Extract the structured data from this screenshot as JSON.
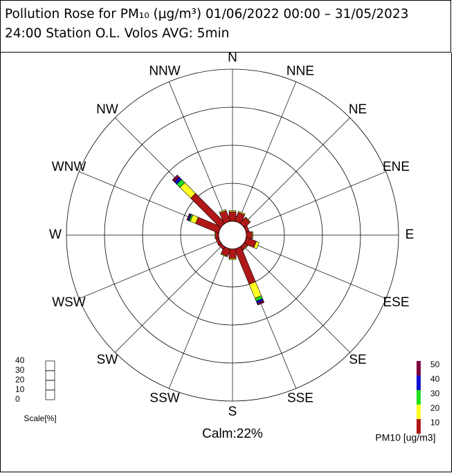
{
  "chart_data": {
    "type": "rose",
    "title": "Pollution Rose for PM₁₀  (μg/m³) 01/06/2022 00:00 – 31/05/2023 24:00 Station O.L. Volos AVG: 5min",
    "directions": [
      "N",
      "NNE",
      "NE",
      "ENE",
      "E",
      "ESE",
      "SE",
      "SSE",
      "S",
      "SSW",
      "SW",
      "WSW",
      "W",
      "WNW",
      "NW",
      "NNW"
    ],
    "series": [
      {
        "name": "10",
        "color": "#b01818",
        "values": [
          2.5,
          2.5,
          2,
          0.8,
          1.5,
          2.8,
          1,
          10,
          2.5,
          2,
          0.8,
          0.8,
          0.8,
          6.5,
          11,
          3
        ]
      },
      {
        "name": "20",
        "color": "#ffff20",
        "values": [
          0.3,
          0.3,
          0.2,
          0,
          0.2,
          0.8,
          0.2,
          4,
          0.3,
          0.2,
          0,
          0,
          0.2,
          1.5,
          4,
          0.3
        ]
      },
      {
        "name": "30",
        "color": "#20e020",
        "values": [
          0,
          0,
          0,
          0,
          0,
          0,
          0,
          0.8,
          0,
          0,
          0,
          0,
          0,
          0.4,
          1.2,
          0
        ]
      },
      {
        "name": "40",
        "color": "#1010d0",
        "values": [
          0,
          0,
          0,
          0,
          0,
          0,
          0,
          0.6,
          0,
          0,
          0,
          0,
          0,
          0.3,
          0.8,
          0
        ]
      },
      {
        "name": "50",
        "color": "#800040",
        "values": [
          0,
          0,
          0,
          0,
          0,
          0,
          0,
          0.5,
          0,
          0,
          0,
          0,
          0,
          0.3,
          0.8,
          0
        ]
      }
    ],
    "rlim": [
      0,
      40
    ],
    "rticks": [
      0,
      10,
      20,
      30,
      40
    ],
    "scale_label": "Scale[%]",
    "legend_title": "PM10 [ug/m3]",
    "calm_label": "Calm:22%"
  }
}
